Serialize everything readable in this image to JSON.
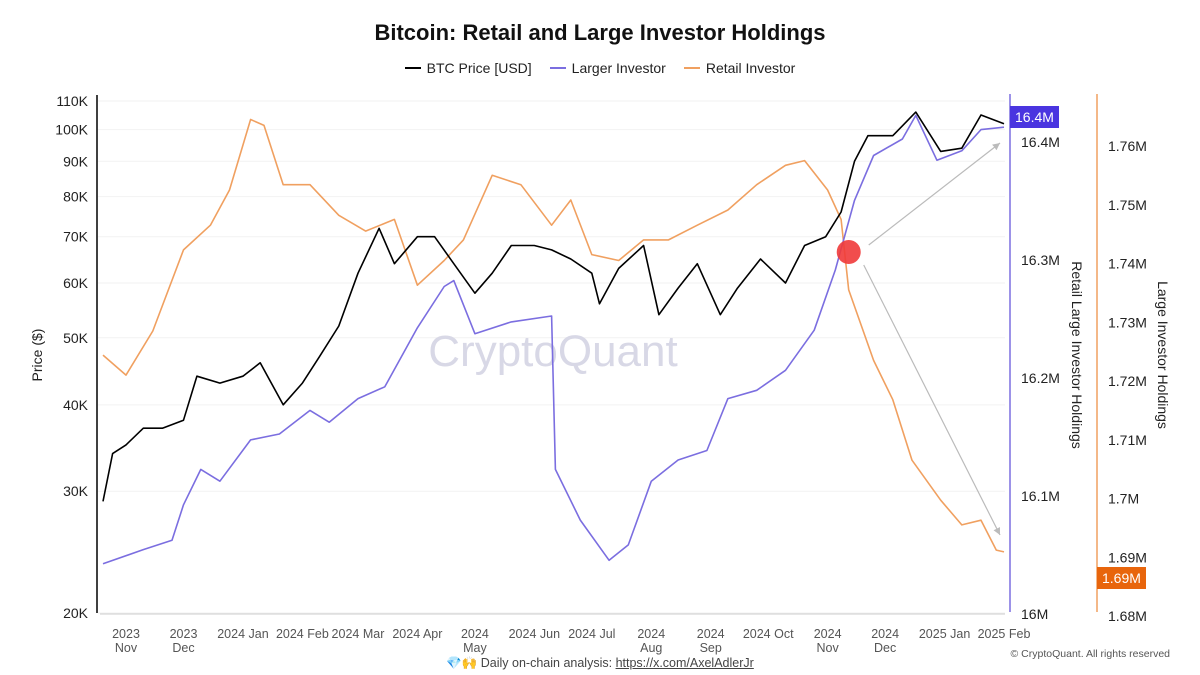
{
  "chart_data": {
    "type": "line",
    "title": "Bitcoin: Retail and Large Investor Holdings",
    "legend_position": "top",
    "grid": true,
    "watermark": "CryptoQuant",
    "x_ticks": [
      {
        "date": "2023-11-01",
        "l1": "2023",
        "l2": "Nov"
      },
      {
        "date": "2023-12-01",
        "l1": "2023",
        "l2": "Dec"
      },
      {
        "date": "2024-01-01",
        "l1": "2024 Jan",
        "l2": ""
      },
      {
        "date": "2024-02-01",
        "l1": "2024 Feb",
        "l2": ""
      },
      {
        "date": "2024-03-01",
        "l1": "2024 Mar",
        "l2": ""
      },
      {
        "date": "2024-04-01",
        "l1": "2024 Apr",
        "l2": ""
      },
      {
        "date": "2024-05-01",
        "l1": "2024",
        "l2": "May"
      },
      {
        "date": "2024-06-01",
        "l1": "2024 Jun",
        "l2": ""
      },
      {
        "date": "2024-07-01",
        "l1": "2024 Jul",
        "l2": ""
      },
      {
        "date": "2024-08-01",
        "l1": "2024",
        "l2": "Aug"
      },
      {
        "date": "2024-09-01",
        "l1": "2024",
        "l2": "Sep"
      },
      {
        "date": "2024-10-01",
        "l1": "2024 Oct",
        "l2": ""
      },
      {
        "date": "2024-11-01",
        "l1": "2024",
        "l2": "Nov"
      },
      {
        "date": "2024-12-01",
        "l1": "2024",
        "l2": "Dec"
      },
      {
        "date": "2025-01-01",
        "l1": "2025 Jan",
        "l2": ""
      },
      {
        "date": "2025-02-01",
        "l1": "2025 Feb",
        "l2": ""
      }
    ],
    "x_range": [
      "2023-10-20",
      "2025-02-01"
    ],
    "axes": {
      "price": {
        "label": "Price ($)",
        "scale": "log",
        "range": [
          20000,
          110000
        ],
        "ticks": [
          [
            20000,
            "20K"
          ],
          [
            30000,
            "30K"
          ],
          [
            40000,
            "40K"
          ],
          [
            50000,
            "50K"
          ],
          [
            60000,
            "60K"
          ],
          [
            70000,
            "70K"
          ],
          [
            80000,
            "80K"
          ],
          [
            90000,
            "90K"
          ],
          [
            100000,
            "100K"
          ],
          [
            110000,
            "110K"
          ]
        ]
      },
      "large": {
        "label": "Retail Large Investor Holdings",
        "scale": "linear",
        "range": [
          16.0,
          16.4
        ],
        "ticks": [
          [
            16.0,
            "16M"
          ],
          [
            16.1,
            "16.1M"
          ],
          [
            16.2,
            "16.2M"
          ],
          [
            16.3,
            "16.3M"
          ],
          [
            16.4,
            "16.4M"
          ]
        ],
        "current": "16.4M",
        "color": "#7b6ee0",
        "badge_color": "#4a35e0"
      },
      "retail": {
        "label": "Large Investor Holdings",
        "scale": "linear",
        "range": [
          1.68,
          1.765
        ],
        "ticks": [
          [
            1.68,
            "1.68M"
          ],
          [
            1.69,
            "1.69M"
          ],
          [
            1.7,
            "1.7M"
          ],
          [
            1.71,
            "1.71M"
          ],
          [
            1.72,
            "1.72M"
          ],
          [
            1.73,
            "1.73M"
          ],
          [
            1.74,
            "1.74M"
          ],
          [
            1.75,
            "1.75M"
          ],
          [
            1.76,
            "1.76M"
          ]
        ],
        "current": "1.69M",
        "color": "#f0a060",
        "badge_color": "#e8650c"
      }
    },
    "series": [
      {
        "name": "BTC Price [USD]",
        "axis": "price",
        "color": "#000000",
        "points": [
          [
            "2023-10-20",
            29000
          ],
          [
            "2023-10-25",
            34000
          ],
          [
            "2023-11-01",
            35000
          ],
          [
            "2023-11-10",
            37000
          ],
          [
            "2023-11-20",
            37000
          ],
          [
            "2023-12-01",
            38000
          ],
          [
            "2023-12-08",
            44000
          ],
          [
            "2023-12-20",
            43000
          ],
          [
            "2024-01-01",
            44000
          ],
          [
            "2024-01-10",
            46000
          ],
          [
            "2024-01-22",
            40000
          ],
          [
            "2024-02-01",
            43000
          ],
          [
            "2024-02-10",
            47000
          ],
          [
            "2024-02-20",
            52000
          ],
          [
            "2024-03-01",
            62000
          ],
          [
            "2024-03-12",
            72000
          ],
          [
            "2024-03-20",
            64000
          ],
          [
            "2024-04-01",
            70000
          ],
          [
            "2024-04-10",
            70000
          ],
          [
            "2024-04-20",
            64000
          ],
          [
            "2024-05-01",
            58000
          ],
          [
            "2024-05-10",
            62000
          ],
          [
            "2024-05-20",
            68000
          ],
          [
            "2024-06-01",
            68000
          ],
          [
            "2024-06-10",
            67000
          ],
          [
            "2024-06-20",
            65000
          ],
          [
            "2024-07-01",
            62000
          ],
          [
            "2024-07-05",
            56000
          ],
          [
            "2024-07-15",
            63000
          ],
          [
            "2024-07-28",
            68000
          ],
          [
            "2024-08-05",
            54000
          ],
          [
            "2024-08-15",
            59000
          ],
          [
            "2024-08-25",
            64000
          ],
          [
            "2024-09-06",
            54000
          ],
          [
            "2024-09-15",
            59000
          ],
          [
            "2024-09-27",
            65000
          ],
          [
            "2024-10-10",
            60000
          ],
          [
            "2024-10-20",
            68000
          ],
          [
            "2024-10-31",
            70000
          ],
          [
            "2024-11-08",
            76000
          ],
          [
            "2024-11-15",
            90000
          ],
          [
            "2024-11-22",
            98000
          ],
          [
            "2024-12-05",
            98000
          ],
          [
            "2024-12-17",
            106000
          ],
          [
            "2024-12-30",
            93000
          ],
          [
            "2025-01-10",
            94000
          ],
          [
            "2025-01-20",
            105000
          ],
          [
            "2025-02-01",
            102000
          ]
        ]
      },
      {
        "name": "Larger Investor",
        "axis": "large",
        "color": "#7b6ee0",
        "points": [
          [
            "2023-10-20",
            16.04
          ],
          [
            "2023-11-10",
            16.052
          ],
          [
            "2023-11-25",
            16.06
          ],
          [
            "2023-12-01",
            16.09
          ],
          [
            "2023-12-10",
            16.12
          ],
          [
            "2023-12-20",
            16.11
          ],
          [
            "2024-01-05",
            16.145
          ],
          [
            "2024-01-20",
            16.15
          ],
          [
            "2024-02-05",
            16.17
          ],
          [
            "2024-02-15",
            16.16
          ],
          [
            "2024-03-01",
            16.18
          ],
          [
            "2024-03-15",
            16.19
          ],
          [
            "2024-04-01",
            16.24
          ],
          [
            "2024-04-15",
            16.275
          ],
          [
            "2024-04-20",
            16.28
          ],
          [
            "2024-05-01",
            16.235
          ],
          [
            "2024-05-20",
            16.245
          ],
          [
            "2024-06-10",
            16.25
          ],
          [
            "2024-06-12",
            16.12
          ],
          [
            "2024-06-25",
            16.077
          ],
          [
            "2024-07-10",
            16.043
          ],
          [
            "2024-07-20",
            16.056
          ],
          [
            "2024-08-01",
            16.11
          ],
          [
            "2024-08-15",
            16.128
          ],
          [
            "2024-08-30",
            16.136
          ],
          [
            "2024-09-10",
            16.18
          ],
          [
            "2024-09-25",
            16.187
          ],
          [
            "2024-10-10",
            16.204
          ],
          [
            "2024-10-25",
            16.238
          ],
          [
            "2024-11-05",
            16.289
          ],
          [
            "2024-11-15",
            16.348
          ],
          [
            "2024-11-25",
            16.386
          ],
          [
            "2024-12-10",
            16.4
          ],
          [
            "2024-12-17",
            16.42
          ],
          [
            "2024-12-28",
            16.382
          ],
          [
            "2025-01-10",
            16.39
          ],
          [
            "2025-01-20",
            16.408
          ],
          [
            "2025-02-01",
            16.41
          ]
        ]
      },
      {
        "name": "Retail Investor",
        "axis": "retail",
        "color": "#f0a060",
        "points": [
          [
            "2023-10-20",
            1.7239
          ],
          [
            "2023-11-01",
            1.7205
          ],
          [
            "2023-11-15",
            1.728
          ],
          [
            "2023-12-01",
            1.7418
          ],
          [
            "2023-12-15",
            1.746
          ],
          [
            "2023-12-25",
            1.752
          ],
          [
            "2024-01-05",
            1.764
          ],
          [
            "2024-01-12",
            1.763
          ],
          [
            "2024-01-22",
            1.7529
          ],
          [
            "2024-02-05",
            1.7529
          ],
          [
            "2024-02-20",
            1.7477
          ],
          [
            "2024-03-05",
            1.745
          ],
          [
            "2024-03-20",
            1.747
          ],
          [
            "2024-04-01",
            1.7358
          ],
          [
            "2024-04-15",
            1.74
          ],
          [
            "2024-04-25",
            1.7435
          ],
          [
            "2024-05-10",
            1.7545
          ],
          [
            "2024-05-25",
            1.7529
          ],
          [
            "2024-06-10",
            1.746
          ],
          [
            "2024-06-20",
            1.7503
          ],
          [
            "2024-07-01",
            1.741
          ],
          [
            "2024-07-15",
            1.74
          ],
          [
            "2024-07-28",
            1.7435
          ],
          [
            "2024-08-10",
            1.7435
          ],
          [
            "2024-08-25",
            1.746
          ],
          [
            "2024-09-10",
            1.7486
          ],
          [
            "2024-09-25",
            1.7529
          ],
          [
            "2024-10-10",
            1.7562
          ],
          [
            "2024-10-20",
            1.757
          ],
          [
            "2024-11-01",
            1.752
          ],
          [
            "2024-11-08",
            1.747
          ],
          [
            "2024-11-12",
            1.735
          ],
          [
            "2024-11-25",
            1.723
          ],
          [
            "2024-12-05",
            1.7163
          ],
          [
            "2024-12-15",
            1.706
          ],
          [
            "2024-12-30",
            1.6992
          ],
          [
            "2025-01-10",
            1.695
          ],
          [
            "2025-01-20",
            1.6958
          ],
          [
            "2025-01-28",
            1.6907
          ],
          [
            "2025-02-01",
            1.6904
          ]
        ]
      }
    ],
    "annotations": {
      "highlight_date": "2024-11-12",
      "highlight_color": "#f03a3a"
    }
  },
  "footer": {
    "prefix": "💎🙌 Daily on-chain analysis: ",
    "link": "https://x.com/AxelAdlerJr",
    "copyright": "© CryptoQuant. All rights reserved"
  }
}
